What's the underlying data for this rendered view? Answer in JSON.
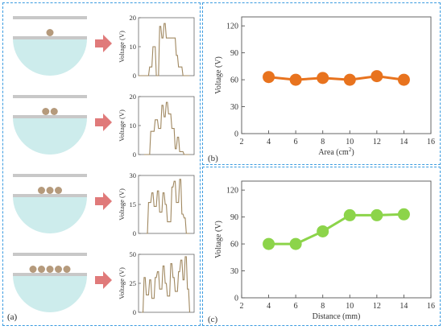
{
  "panel_a": {
    "label": "(a)",
    "rows": [
      {
        "balls": 1,
        "chart": {
          "ylabel": "Voltage (V)",
          "yticks": [
            "0",
            "10",
            "20"
          ],
          "ymax": 20,
          "points": [
            [
              0,
              0
            ],
            [
              0.18,
              0
            ],
            [
              0.2,
              3
            ],
            [
              0.24,
              3
            ],
            [
              0.26,
              10
            ],
            [
              0.3,
              10
            ],
            [
              0.32,
              0
            ],
            [
              0.36,
              0
            ],
            [
              0.38,
              17
            ],
            [
              0.4,
              17
            ],
            [
              0.42,
              13
            ],
            [
              0.44,
              13
            ],
            [
              0.46,
              18
            ],
            [
              0.48,
              18
            ],
            [
              0.5,
              13
            ],
            [
              0.66,
              13
            ],
            [
              0.68,
              7
            ],
            [
              0.7,
              7
            ],
            [
              0.72,
              3
            ],
            [
              0.78,
              3
            ],
            [
              0.8,
              0
            ],
            [
              0.92,
              0
            ]
          ]
        }
      },
      {
        "balls": 2,
        "chart": {
          "ylabel": "Voltage (V)",
          "yticks": [
            "0",
            "10",
            "20"
          ],
          "ymax": 20,
          "points": [
            [
              0.1,
              0
            ],
            [
              0.2,
              0
            ],
            [
              0.22,
              8
            ],
            [
              0.28,
              8
            ],
            [
              0.3,
              12
            ],
            [
              0.34,
              12
            ],
            [
              0.36,
              9
            ],
            [
              0.4,
              9
            ],
            [
              0.42,
              17
            ],
            [
              0.44,
              17
            ],
            [
              0.46,
              13
            ],
            [
              0.48,
              13
            ],
            [
              0.5,
              18
            ],
            [
              0.52,
              18
            ],
            [
              0.54,
              14
            ],
            [
              0.58,
              14
            ],
            [
              0.6,
              9
            ],
            [
              0.64,
              9
            ],
            [
              0.66,
              2
            ],
            [
              0.68,
              2
            ],
            [
              0.7,
              6
            ],
            [
              0.72,
              6
            ],
            [
              0.74,
              1
            ],
            [
              0.8,
              1
            ],
            [
              0.82,
              0
            ],
            [
              0.92,
              0
            ]
          ]
        }
      },
      {
        "balls": 3,
        "chart": {
          "ylabel": "Voltage (V)",
          "yticks": [
            "0",
            "15",
            "30"
          ],
          "ymax": 30,
          "points": [
            [
              0.14,
              0
            ],
            [
              0.16,
              0
            ],
            [
              0.18,
              16
            ],
            [
              0.22,
              16
            ],
            [
              0.24,
              21
            ],
            [
              0.26,
              21
            ],
            [
              0.28,
              14
            ],
            [
              0.32,
              14
            ],
            [
              0.34,
              22
            ],
            [
              0.36,
              22
            ],
            [
              0.38,
              11
            ],
            [
              0.42,
              11
            ],
            [
              0.44,
              21
            ],
            [
              0.46,
              21
            ],
            [
              0.48,
              15
            ],
            [
              0.5,
              15
            ],
            [
              0.52,
              6
            ],
            [
              0.58,
              6
            ],
            [
              0.6,
              24
            ],
            [
              0.62,
              24
            ],
            [
              0.64,
              27
            ],
            [
              0.66,
              27
            ],
            [
              0.68,
              16
            ],
            [
              0.72,
              16
            ],
            [
              0.74,
              28
            ],
            [
              0.76,
              28
            ],
            [
              0.78,
              10
            ],
            [
              0.8,
              10
            ],
            [
              0.82,
              8
            ],
            [
              0.84,
              8
            ],
            [
              0.86,
              0
            ],
            [
              0.92,
              0
            ]
          ]
        }
      },
      {
        "balls": 5,
        "chart": {
          "ylabel": "Voltage (V)",
          "yticks": [
            "0",
            "25",
            "50"
          ],
          "ymax": 50,
          "points": [
            [
              0.06,
              0
            ],
            [
              0.08,
              0
            ],
            [
              0.1,
              30
            ],
            [
              0.12,
              30
            ],
            [
              0.14,
              15
            ],
            [
              0.18,
              15
            ],
            [
              0.2,
              28
            ],
            [
              0.22,
              28
            ],
            [
              0.24,
              12
            ],
            [
              0.28,
              12
            ],
            [
              0.3,
              30
            ],
            [
              0.32,
              30
            ],
            [
              0.34,
              35
            ],
            [
              0.36,
              35
            ],
            [
              0.38,
              20
            ],
            [
              0.42,
              20
            ],
            [
              0.44,
              40
            ],
            [
              0.46,
              40
            ],
            [
              0.48,
              25
            ],
            [
              0.5,
              25
            ],
            [
              0.52,
              14
            ],
            [
              0.56,
              14
            ],
            [
              0.58,
              42
            ],
            [
              0.6,
              42
            ],
            [
              0.62,
              30
            ],
            [
              0.64,
              30
            ],
            [
              0.66,
              18
            ],
            [
              0.7,
              18
            ],
            [
              0.72,
              35
            ],
            [
              0.74,
              35
            ],
            [
              0.76,
              45
            ],
            [
              0.78,
              45
            ],
            [
              0.8,
              28
            ],
            [
              0.82,
              28
            ],
            [
              0.84,
              48
            ],
            [
              0.86,
              48
            ],
            [
              0.88,
              20
            ],
            [
              0.9,
              20
            ],
            [
              0.92,
              0
            ]
          ]
        }
      }
    ]
  },
  "chart_data": [
    {
      "type": "line",
      "panel_label": "(b)",
      "title": "",
      "xlabel": "Area (cm",
      "xlabel_superscript": "2",
      "xlabel_suffix": ")",
      "ylabel": "Voltage (V)",
      "xlim": [
        2,
        16
      ],
      "ylim": [
        0,
        130
      ],
      "xticks": [
        2,
        4,
        6,
        8,
        10,
        12,
        14,
        16
      ],
      "yticks": [
        0,
        30,
        60,
        90,
        120
      ],
      "color": "#e8731e",
      "x": [
        4,
        6,
        8,
        10,
        12,
        14
      ],
      "y": [
        63,
        60,
        62,
        60,
        64,
        60
      ]
    },
    {
      "type": "line",
      "panel_label": "(c)",
      "title": "",
      "xlabel": "Distance (mm)",
      "ylabel": "Voltage (V)",
      "xlim": [
        2,
        16
      ],
      "ylim": [
        0,
        130
      ],
      "xticks": [
        2,
        4,
        6,
        8,
        10,
        12,
        14,
        16
      ],
      "yticks": [
        0,
        30,
        60,
        90,
        120
      ],
      "color": "#8cd44a",
      "x": [
        4,
        6,
        8,
        10,
        12,
        14
      ],
      "y": [
        60,
        60,
        74,
        92,
        92,
        93
      ]
    }
  ],
  "colors": {
    "panel_border": "#3a9be0",
    "trace": "#a08860",
    "bar": "#c8c8c8",
    "bowl": "#cdecec",
    "ball": "#b59a7c",
    "arrow": "#e07a7a"
  }
}
